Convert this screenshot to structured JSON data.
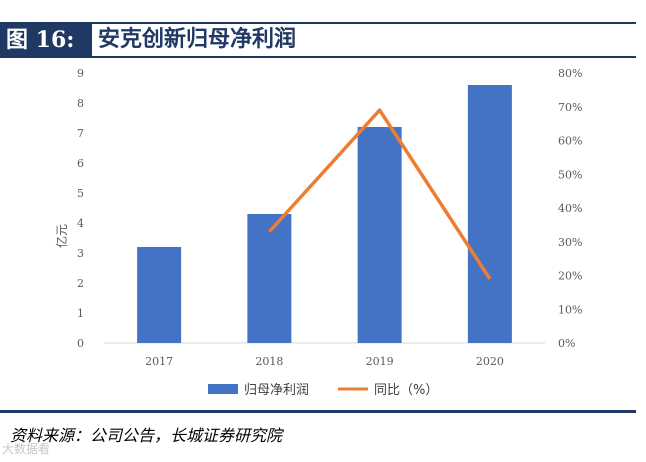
{
  "figure": {
    "number_label": "图 16:",
    "title": "安克创新归母净利润",
    "source": "资料来源：公司公告，长城证券研究院",
    "watermark": "大数据看"
  },
  "chart_data": {
    "type": "bar",
    "categories": [
      "2017",
      "2018",
      "2019",
      "2020"
    ],
    "series": [
      {
        "name": "归母净利润",
        "type": "bar",
        "axis": "left",
        "values": [
          3.2,
          4.3,
          7.2,
          8.6
        ],
        "color": "#4472c4"
      },
      {
        "name": "同比（%）",
        "type": "line",
        "axis": "right",
        "values": [
          null,
          33,
          69,
          19
        ],
        "color": "#ed7d31"
      }
    ],
    "ylabel": "亿元",
    "ylim": [
      0,
      9
    ],
    "y_ticks": [
      0,
      1,
      2,
      3,
      4,
      5,
      6,
      7,
      8,
      9
    ],
    "y2lim": [
      0,
      80
    ],
    "y2_ticks": [
      "0%",
      "10%",
      "20%",
      "30%",
      "40%",
      "50%",
      "60%",
      "70%",
      "80%"
    ],
    "legend_position": "bottom",
    "grid": false
  }
}
